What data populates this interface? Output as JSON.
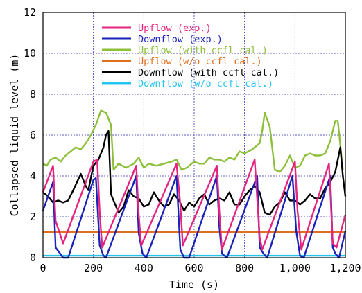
{
  "chart_data": {
    "type": "line",
    "title": "",
    "xlabel": "Time (s)",
    "ylabel": "Collapsed liquid level (m)",
    "xlim": [
      0,
      1200
    ],
    "ylim": [
      0,
      12
    ],
    "xticks": [
      {
        "v": 0,
        "label": "0"
      },
      {
        "v": 200,
        "label": "200"
      },
      {
        "v": 400,
        "label": "400"
      },
      {
        "v": 600,
        "label": "600"
      },
      {
        "v": 800,
        "label": "800"
      },
      {
        "v": 1000,
        "label": "1,000"
      },
      {
        "v": 1200,
        "label": "1,200"
      }
    ],
    "yticks": [
      {
        "v": 0,
        "label": "0"
      },
      {
        "v": 2,
        "label": "2"
      },
      {
        "v": 4,
        "label": "4"
      },
      {
        "v": 6,
        "label": "6"
      },
      {
        "v": 8,
        "label": "8"
      },
      {
        "v": 10,
        "label": "10"
      },
      {
        "v": 12,
        "label": "12"
      }
    ],
    "grid": true,
    "legend_position": "top-center",
    "series": [
      {
        "name": "Upflow (exp.)",
        "color": "#e6237e",
        "x": [
          0,
          40,
          50,
          80,
          200,
          215,
          225,
          235,
          370,
          380,
          390,
          530,
          545,
          555,
          690,
          700,
          710,
          840,
          860,
          870,
          1000,
          1010,
          1025,
          1135,
          1150,
          1165,
          1200
        ],
        "y": [
          3.2,
          4.5,
          1.8,
          0.7,
          4.7,
          4.8,
          2.2,
          0.5,
          4.5,
          2.1,
          0.6,
          4.6,
          2.6,
          0.6,
          4.5,
          2.2,
          0.4,
          4.8,
          1.0,
          0.4,
          4.7,
          2.3,
          0.4,
          4.6,
          0.7,
          0.5,
          2.1
        ]
      },
      {
        "name": "Downflow (exp.)",
        "color": "#1b22b8",
        "x": [
          0,
          40,
          50,
          80,
          100,
          200,
          210,
          225,
          240,
          250,
          370,
          380,
          395,
          410,
          530,
          545,
          560,
          580,
          690,
          700,
          710,
          730,
          850,
          860,
          875,
          890,
          990,
          1005,
          1020,
          1035,
          1140,
          1150,
          1160,
          1175,
          1200
        ],
        "y": [
          2.3,
          3.7,
          0.5,
          0.0,
          0.0,
          3.8,
          3.9,
          0.6,
          0.1,
          0.0,
          4.0,
          1.2,
          0.2,
          0.0,
          4.0,
          0.4,
          0.0,
          0.0,
          4.0,
          1.5,
          0.2,
          0.0,
          4.0,
          0.5,
          0.2,
          0.0,
          4.0,
          1.3,
          0.1,
          0.0,
          4.0,
          0.5,
          0.2,
          0.0,
          1.3
        ]
      },
      {
        "name": "Upflow (with ccfl cal.)",
        "color": "#8dbf3a",
        "x": [
          0,
          15,
          30,
          50,
          70,
          90,
          110,
          130,
          150,
          170,
          190,
          210,
          230,
          250,
          270,
          280,
          300,
          330,
          360,
          380,
          400,
          420,
          450,
          480,
          510,
          530,
          550,
          570,
          600,
          620,
          640,
          660,
          680,
          700,
          720,
          740,
          760,
          780,
          800,
          830,
          860,
          870,
          880,
          900,
          920,
          940,
          960,
          980,
          1000,
          1020,
          1040,
          1060,
          1080,
          1100,
          1120,
          1140,
          1160,
          1170,
          1190
        ],
        "y": [
          4.6,
          4.5,
          4.8,
          4.9,
          4.7,
          5.0,
          5.2,
          5.4,
          5.3,
          5.6,
          6.0,
          6.5,
          7.2,
          7.1,
          6.5,
          4.3,
          4.6,
          4.4,
          4.6,
          4.9,
          4.4,
          4.6,
          4.5,
          4.6,
          4.7,
          4.8,
          4.3,
          4.4,
          4.7,
          4.6,
          4.6,
          4.9,
          4.8,
          4.8,
          4.7,
          4.9,
          4.8,
          5.2,
          5.1,
          5.3,
          5.6,
          6.2,
          7.1,
          6.4,
          4.3,
          4.2,
          4.5,
          5.0,
          4.4,
          4.5,
          5.0,
          5.1,
          5.0,
          5.0,
          5.1,
          5.7,
          6.7,
          6.7,
          4.3
        ]
      },
      {
        "name": "Upflow (w/o ccfl cal.)",
        "color": "#e07020",
        "x": [
          0,
          1200
        ],
        "y": [
          1.25,
          1.25
        ]
      },
      {
        "name": "Downflow (with ccfl cal.)",
        "color": "#000000",
        "x": [
          0,
          20,
          40,
          60,
          80,
          100,
          120,
          150,
          170,
          180,
          200,
          220,
          240,
          250,
          260,
          270,
          280,
          300,
          320,
          340,
          360,
          380,
          400,
          420,
          440,
          460,
          480,
          500,
          520,
          540,
          560,
          580,
          600,
          620,
          640,
          660,
          680,
          700,
          720,
          740,
          760,
          780,
          800,
          820,
          840,
          860,
          880,
          900,
          920,
          940,
          960,
          980,
          1000,
          1020,
          1040,
          1060,
          1080,
          1100,
          1120,
          1140,
          1160,
          1180,
          1190,
          1200
        ],
        "y": [
          3.2,
          3.0,
          2.7,
          2.8,
          2.7,
          2.8,
          3.3,
          4.1,
          3.5,
          3.3,
          4.5,
          4.8,
          5.4,
          6.0,
          6.2,
          3.1,
          2.8,
          2.2,
          2.5,
          3.3,
          3.0,
          2.9,
          2.5,
          2.6,
          3.2,
          2.8,
          2.5,
          2.6,
          3.1,
          2.8,
          2.3,
          2.7,
          2.5,
          2.9,
          3.1,
          2.6,
          2.8,
          2.9,
          2.8,
          3.2,
          2.6,
          2.6,
          3.0,
          3.3,
          3.5,
          3.2,
          2.2,
          2.1,
          2.5,
          2.7,
          3.2,
          2.8,
          2.8,
          2.6,
          2.8,
          3.1,
          2.9,
          2.9,
          3.4,
          3.7,
          4.2,
          5.4,
          4.0,
          3.0
        ]
      },
      {
        "name": "Downflow (w/o ccfl cal.)",
        "color": "#25c4ee",
        "x": [
          0,
          1200
        ],
        "y": [
          0.1,
          0.1
        ]
      }
    ]
  }
}
